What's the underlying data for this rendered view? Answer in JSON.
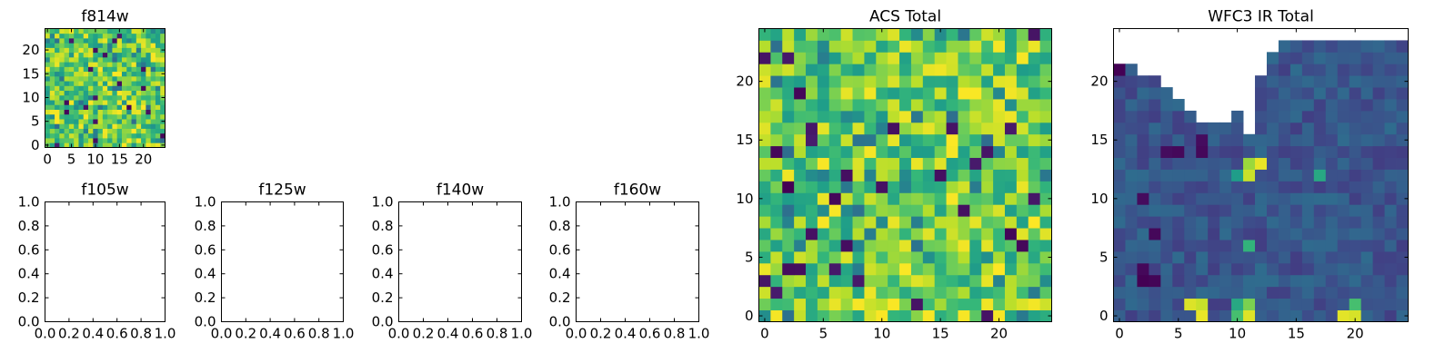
{
  "chart_data": [
    {
      "type": "heatmap",
      "title": "f814w",
      "xlim": [
        -0.5,
        24.5
      ],
      "ylim": [
        -0.5,
        24.5
      ],
      "xticks": [
        0,
        5,
        10,
        15,
        20
      ],
      "yticks": [
        0,
        5,
        10,
        15,
        20
      ],
      "grid_size": 25,
      "colormap": "viridis",
      "seed": 814
    },
    {
      "type": "empty",
      "title": "f105w",
      "xlim": [
        0,
        1
      ],
      "ylim": [
        0,
        1
      ],
      "xtick_labels": [
        "0.0",
        "0.2",
        "0.4",
        "0.6",
        "0.8",
        "1.0"
      ],
      "ytick_labels": [
        "0.0",
        "0.2",
        "0.4",
        "0.6",
        "0.8",
        "1.0"
      ]
    },
    {
      "type": "empty",
      "title": "f125w",
      "xlim": [
        0,
        1
      ],
      "ylim": [
        0,
        1
      ],
      "xtick_labels": [
        "0.0",
        "0.2",
        "0.4",
        "0.6",
        "0.8",
        "1.0"
      ],
      "ytick_labels": [
        "0.0",
        "0.2",
        "0.4",
        "0.6",
        "0.8",
        "1.0"
      ]
    },
    {
      "type": "empty",
      "title": "f140w",
      "xlim": [
        0,
        1
      ],
      "ylim": [
        0,
        1
      ],
      "xtick_labels": [
        "0.0",
        "0.2",
        "0.4",
        "0.6",
        "0.8",
        "1.0"
      ],
      "ytick_labels": [
        "0.0",
        "0.2",
        "0.4",
        "0.6",
        "0.8",
        "1.0"
      ]
    },
    {
      "type": "empty",
      "title": "f160w",
      "xlim": [
        0,
        1
      ],
      "ylim": [
        0,
        1
      ],
      "xtick_labels": [
        "0.0",
        "0.2",
        "0.4",
        "0.6",
        "0.8",
        "1.0"
      ],
      "ytick_labels": [
        "0.0",
        "0.2",
        "0.4",
        "0.6",
        "0.8",
        "1.0"
      ]
    },
    {
      "type": "heatmap",
      "title": "ACS Total",
      "xlim": [
        -0.5,
        24.5
      ],
      "ylim": [
        -0.5,
        24.5
      ],
      "xticks": [
        0,
        5,
        10,
        15,
        20
      ],
      "yticks": [
        0,
        5,
        10,
        15,
        20
      ],
      "grid_size": 25,
      "colormap": "viridis",
      "seed": 1234
    },
    {
      "type": "heatmap",
      "title": "WFC3 IR Total",
      "xlim": [
        -0.5,
        24.5
      ],
      "ylim": [
        -0.5,
        24.5
      ],
      "xticks": [
        0,
        5,
        10,
        15,
        20
      ],
      "yticks": [
        0,
        5,
        10,
        15,
        20
      ],
      "grid_size": 25,
      "colormap": "viridis",
      "seed": 3,
      "masked_top_boundary": [
        21,
        21,
        20,
        20,
        19,
        18,
        17,
        16,
        16,
        16,
        17,
        15,
        20,
        22,
        23,
        23,
        23,
        23,
        23,
        23,
        23,
        23,
        23,
        23,
        23
      ],
      "bright_cells": [
        [
          11,
          12,
          0.92
        ],
        [
          11,
          13,
          0.85
        ],
        [
          12,
          13,
          0.97
        ],
        [
          10,
          12,
          0.55
        ],
        [
          17,
          12,
          0.6
        ],
        [
          11,
          6,
          0.65
        ],
        [
          7,
          0,
          0.97
        ],
        [
          7,
          1,
          0.92
        ],
        [
          6,
          1,
          0.95
        ],
        [
          10,
          0,
          0.7
        ],
        [
          10,
          1,
          0.6
        ],
        [
          11,
          0,
          0.95
        ],
        [
          11,
          1,
          0.8
        ],
        [
          19,
          0,
          0.96
        ],
        [
          20,
          0,
          0.94
        ],
        [
          20,
          1,
          0.7
        ]
      ],
      "dark_cells": [
        [
          2,
          3,
          0.0
        ],
        [
          2,
          4,
          0.02
        ],
        [
          3,
          3,
          0.01
        ],
        [
          7,
          14,
          0.02
        ],
        [
          7,
          15,
          0.03
        ],
        [
          5,
          14,
          0.02
        ],
        [
          4,
          14,
          0.03
        ],
        [
          0,
          21,
          0.0
        ],
        [
          3,
          7,
          0.02
        ],
        [
          2,
          10,
          0.03
        ]
      ]
    }
  ]
}
